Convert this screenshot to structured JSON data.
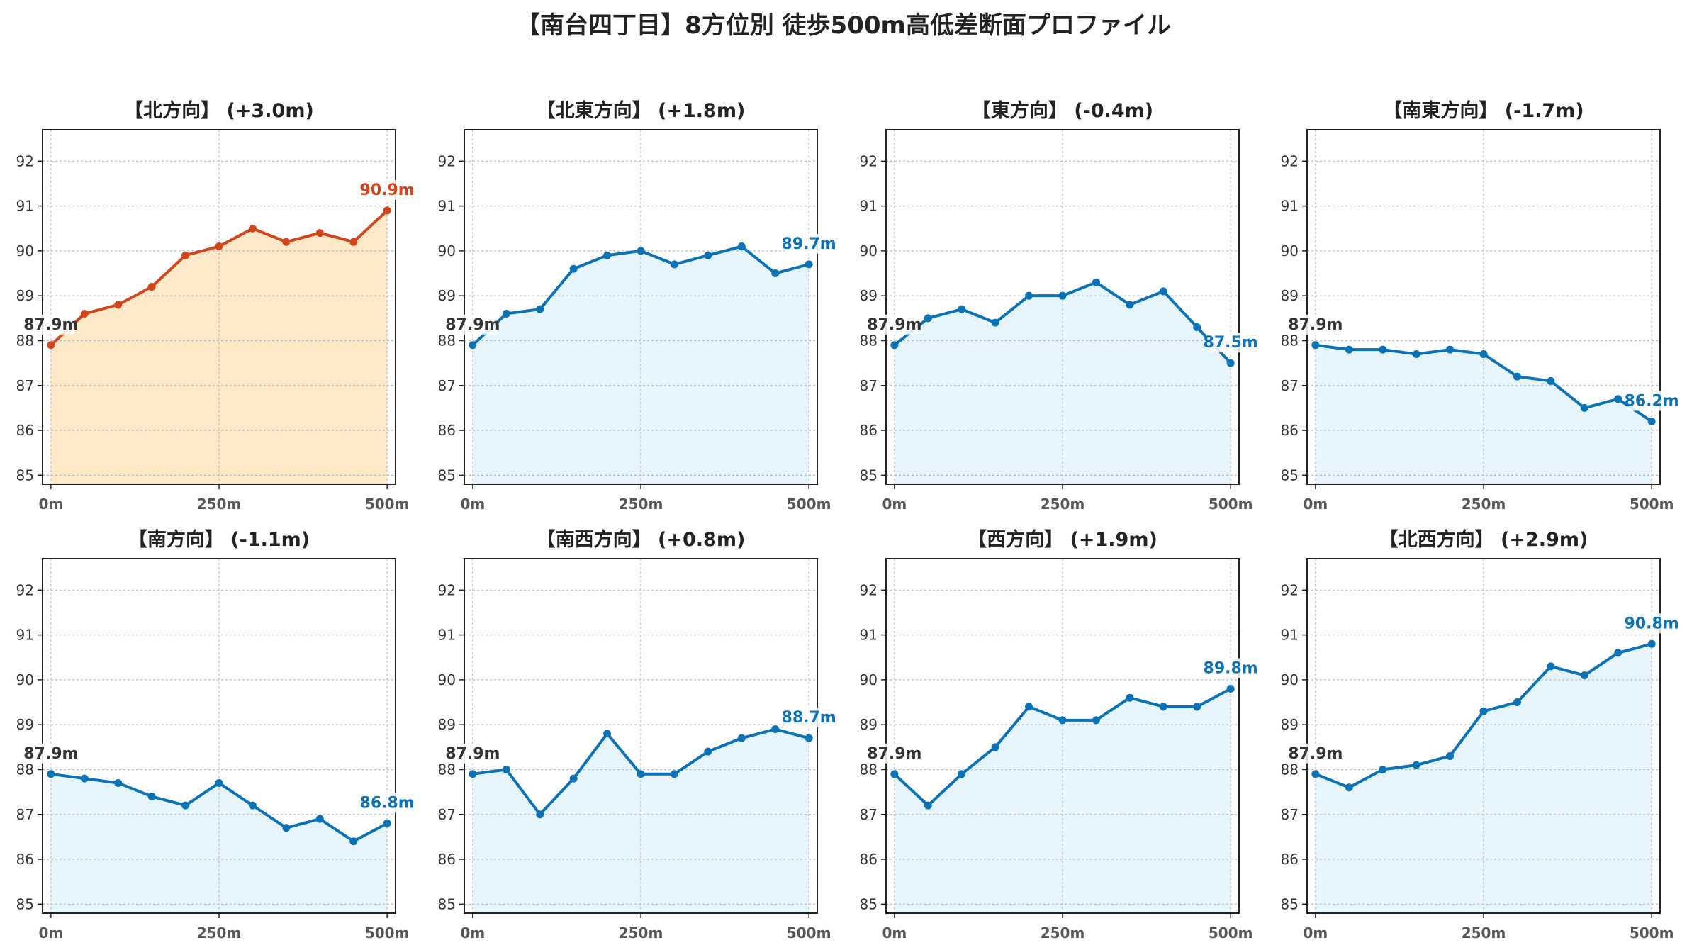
{
  "title": "【南台四丁目】8方位別 徒歩500m高低差断面プロファイル",
  "colors": {
    "highlight_line": "#d2461e",
    "highlight_fill": "#fde8c8",
    "normal_line": "#0a72b5",
    "normal_fill": "#e6f4fb",
    "start_label": "#333333",
    "grid": "#bbbbbb"
  },
  "chart_data": [
    {
      "type": "line",
      "title": "【北方向】 (+3.0m)",
      "highlight": true,
      "x": [
        0,
        50,
        100,
        150,
        200,
        250,
        300,
        350,
        400,
        450,
        500
      ],
      "values": [
        87.9,
        88.6,
        88.8,
        89.2,
        89.9,
        90.1,
        90.5,
        90.2,
        90.4,
        90.2,
        90.9
      ],
      "start_label": "87.9m",
      "end_label": "90.9m",
      "xticks": [
        "0m",
        "250m",
        "500m"
      ],
      "yticks": [
        "85",
        "86",
        "87",
        "88",
        "89",
        "90",
        "91",
        "92"
      ],
      "ylim": [
        84.8,
        92.7
      ],
      "grid": true
    },
    {
      "type": "line",
      "title": "【北東方向】 (+1.8m)",
      "highlight": false,
      "x": [
        0,
        50,
        100,
        150,
        200,
        250,
        300,
        350,
        400,
        450,
        500
      ],
      "values": [
        87.9,
        88.6,
        88.7,
        89.6,
        89.9,
        90.0,
        89.7,
        89.9,
        90.1,
        89.5,
        89.7
      ],
      "start_label": "87.9m",
      "end_label": "89.7m",
      "xticks": [
        "0m",
        "250m",
        "500m"
      ],
      "yticks": [
        "85",
        "86",
        "87",
        "88",
        "89",
        "90",
        "91",
        "92"
      ],
      "ylim": [
        84.8,
        92.7
      ],
      "grid": true
    },
    {
      "type": "line",
      "title": "【東方向】 (-0.4m)",
      "highlight": false,
      "x": [
        0,
        50,
        100,
        150,
        200,
        250,
        300,
        350,
        400,
        450,
        500
      ],
      "values": [
        87.9,
        88.5,
        88.7,
        88.4,
        89.0,
        89.0,
        89.3,
        88.8,
        89.1,
        88.3,
        87.5
      ],
      "start_label": "87.9m",
      "end_label": "87.5m",
      "xticks": [
        "0m",
        "250m",
        "500m"
      ],
      "yticks": [
        "85",
        "86",
        "87",
        "88",
        "89",
        "90",
        "91",
        "92"
      ],
      "ylim": [
        84.8,
        92.7
      ],
      "grid": true
    },
    {
      "type": "line",
      "title": "【南東方向】 (-1.7m)",
      "highlight": false,
      "x": [
        0,
        50,
        100,
        150,
        200,
        250,
        300,
        350,
        400,
        450,
        500
      ],
      "values": [
        87.9,
        87.8,
        87.8,
        87.7,
        87.8,
        87.7,
        87.2,
        87.1,
        86.5,
        86.7,
        86.2
      ],
      "start_label": "87.9m",
      "end_label": "86.2m",
      "xticks": [
        "0m",
        "250m",
        "500m"
      ],
      "yticks": [
        "85",
        "86",
        "87",
        "88",
        "89",
        "90",
        "91",
        "92"
      ],
      "ylim": [
        84.8,
        92.7
      ],
      "grid": true
    },
    {
      "type": "line",
      "title": "【南方向】 (-1.1m)",
      "highlight": false,
      "x": [
        0,
        50,
        100,
        150,
        200,
        250,
        300,
        350,
        400,
        450,
        500
      ],
      "values": [
        87.9,
        87.8,
        87.7,
        87.4,
        87.2,
        87.7,
        87.2,
        86.7,
        86.9,
        86.4,
        86.8
      ],
      "start_label": "87.9m",
      "end_label": "86.8m",
      "xticks": [
        "0m",
        "250m",
        "500m"
      ],
      "yticks": [
        "85",
        "86",
        "87",
        "88",
        "89",
        "90",
        "91",
        "92"
      ],
      "ylim": [
        84.8,
        92.7
      ],
      "grid": true
    },
    {
      "type": "line",
      "title": "【南西方向】 (+0.8m)",
      "highlight": false,
      "x": [
        0,
        50,
        100,
        150,
        200,
        250,
        300,
        350,
        400,
        450,
        500
      ],
      "values": [
        87.9,
        88.0,
        87.0,
        87.8,
        88.8,
        87.9,
        87.9,
        88.4,
        88.7,
        88.9,
        88.7
      ],
      "start_label": "87.9m",
      "end_label": "88.7m",
      "xticks": [
        "0m",
        "250m",
        "500m"
      ],
      "yticks": [
        "85",
        "86",
        "87",
        "88",
        "89",
        "90",
        "91",
        "92"
      ],
      "ylim": [
        84.8,
        92.7
      ],
      "grid": true
    },
    {
      "type": "line",
      "title": "【西方向】 (+1.9m)",
      "highlight": false,
      "x": [
        0,
        50,
        100,
        150,
        200,
        250,
        300,
        350,
        400,
        450,
        500
      ],
      "values": [
        87.9,
        87.2,
        87.9,
        88.5,
        89.4,
        89.1,
        89.1,
        89.6,
        89.4,
        89.4,
        89.8
      ],
      "start_label": "87.9m",
      "end_label": "89.8m",
      "xticks": [
        "0m",
        "250m",
        "500m"
      ],
      "yticks": [
        "85",
        "86",
        "87",
        "88",
        "89",
        "90",
        "91",
        "92"
      ],
      "ylim": [
        84.8,
        92.7
      ],
      "grid": true
    },
    {
      "type": "line",
      "title": "【北西方向】 (+2.9m)",
      "highlight": false,
      "x": [
        0,
        50,
        100,
        150,
        200,
        250,
        300,
        350,
        400,
        450,
        500
      ],
      "values": [
        87.9,
        87.6,
        88.0,
        88.1,
        88.3,
        89.3,
        89.5,
        90.3,
        90.1,
        90.6,
        90.8
      ],
      "start_label": "87.9m",
      "end_label": "90.8m",
      "xticks": [
        "0m",
        "250m",
        "500m"
      ],
      "yticks": [
        "85",
        "86",
        "87",
        "88",
        "89",
        "90",
        "91",
        "92"
      ],
      "ylim": [
        84.8,
        92.7
      ],
      "grid": true
    }
  ]
}
